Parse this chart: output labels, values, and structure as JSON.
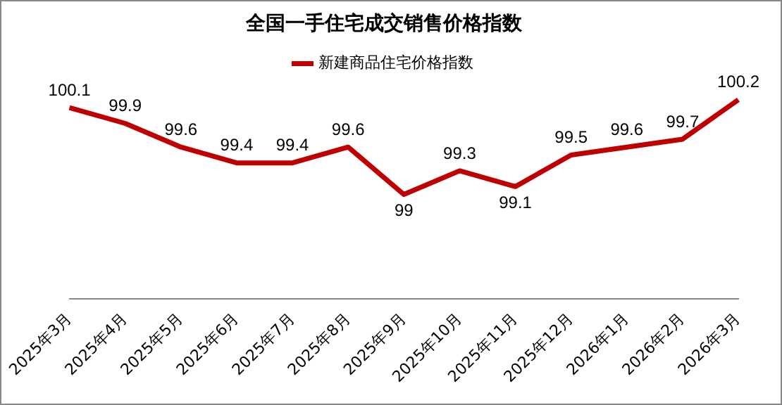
{
  "chart_data": {
    "type": "line",
    "title": "全国一手住宅成交销售价格指数",
    "categories": [
      "2025年3月",
      "2025年4月",
      "2025年5月",
      "2025年6月",
      "2025年7月",
      "2025年8月",
      "2025年9月",
      "2025年10月",
      "2025年11月",
      "2025年12月",
      "2026年1月",
      "2026年2月",
      "2026年3月"
    ],
    "series": [
      {
        "name": "新建商品住宅价格指数",
        "color": "#c00000",
        "values": [
          100.1,
          99.9,
          99.6,
          99.4,
          99.4,
          99.6,
          99,
          99.3,
          99.1,
          99.5,
          99.6,
          99.7,
          100.2
        ]
      }
    ],
    "data_labels": true,
    "legend": "top",
    "grid": false,
    "marker": "none",
    "line_style": "solid"
  }
}
